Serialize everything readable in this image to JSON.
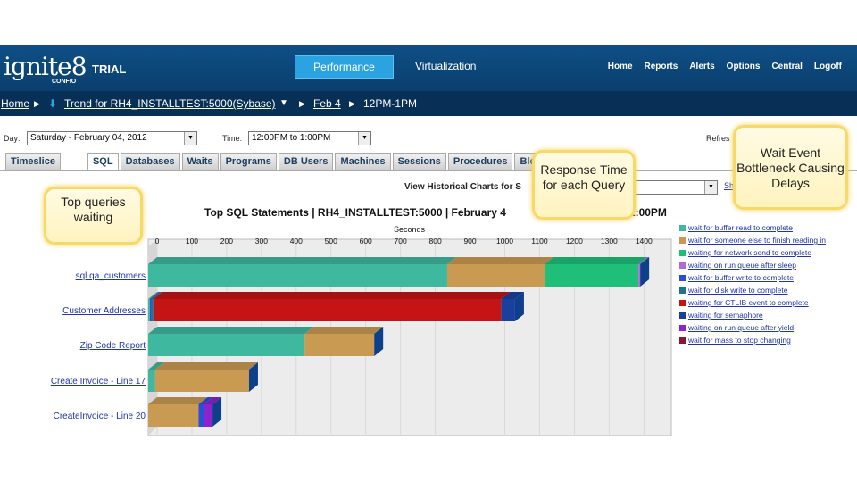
{
  "header": {
    "logo": "ignite8",
    "logo_sub": "CONFIO",
    "trial": "TRIAL",
    "perf": "Performance",
    "virt": "Virtualization",
    "nav": [
      "Home",
      "Reports",
      "Alerts",
      "Options",
      "Central",
      "Logoff"
    ]
  },
  "breadcrumb": {
    "home": "Home",
    "trend": "Trend for RH4_INSTALLTEST:5000(Sybase)",
    "date": "Feb 4",
    "time": "12PM-1PM"
  },
  "controls": {
    "day_label": "Day:",
    "day_value": "Saturday - February 04, 2012",
    "time_label": "Time:",
    "time_value": "12:00PM to 1:00PM",
    "refresh": "Refres",
    "view_hist": "View Historical Charts for S",
    "view_link": "Sh"
  },
  "tabs": [
    "Timeslice",
    "SQL",
    "Databases",
    "Waits",
    "Programs",
    "DB Users",
    "Machines",
    "Sessions",
    "Procedures",
    "Blo"
  ],
  "chart_data": {
    "type": "bar",
    "title": "Top SQL Statements  |  RH4_INSTALLTEST:5000  |  February 4",
    "title_tail": "to 1:00PM",
    "xlabel": "Seconds",
    "xlim": [
      0,
      1500
    ],
    "ticks": [
      0,
      100,
      200,
      300,
      400,
      500,
      600,
      700,
      800,
      900,
      1000,
      1100,
      1200,
      1300,
      1400
    ],
    "categories": [
      "sql qa_customers",
      "Customer Addresses",
      "Zip Code Report",
      "Create Invoice - Line 17",
      "CreateInvoice - Line 20"
    ],
    "series": [
      {
        "name": "wait for buffer read to complete",
        "color": "#3fb8a0",
        "values": [
          860,
          5,
          450,
          20,
          0
        ]
      },
      {
        "name": "wait for someone else to finish reading in",
        "color": "#c99a52",
        "values": [
          280,
          0,
          200,
          270,
          145
        ]
      },
      {
        "name": "waiting for network send to complete",
        "color": "#1fbf7a",
        "values": [
          270,
          0,
          0,
          0,
          0
        ]
      },
      {
        "name": "waiting on run queue after sleep",
        "color": "#b06ad8",
        "values": [
          5,
          0,
          0,
          0,
          0
        ]
      },
      {
        "name": "wait for buffer write to complete",
        "color": "#2a4fd6",
        "values": [
          0,
          5,
          0,
          0,
          15
        ]
      },
      {
        "name": "wait for disk write to complete",
        "color": "#23728a",
        "values": [
          0,
          5,
          0,
          0,
          0
        ]
      },
      {
        "name": "waiting for CTLIB event to complete",
        "color": "#c41414",
        "values": [
          0,
          1000,
          0,
          0,
          0
        ]
      },
      {
        "name": "waiting for semaphore",
        "color": "#1a3f9e",
        "values": [
          0,
          40,
          0,
          0,
          0
        ]
      },
      {
        "name": "waiting on run queue after yield",
        "color": "#8e22cc",
        "values": [
          0,
          0,
          0,
          0,
          25
        ]
      },
      {
        "name": "wait for mass to stop changing",
        "color": "#8a1535",
        "values": [
          0,
          0,
          0,
          0,
          0
        ]
      }
    ]
  },
  "callouts": {
    "top": "Top queries waiting",
    "resp": "Response Time for each Query",
    "wait": "Wait Event Bottleneck Causing Delays"
  }
}
